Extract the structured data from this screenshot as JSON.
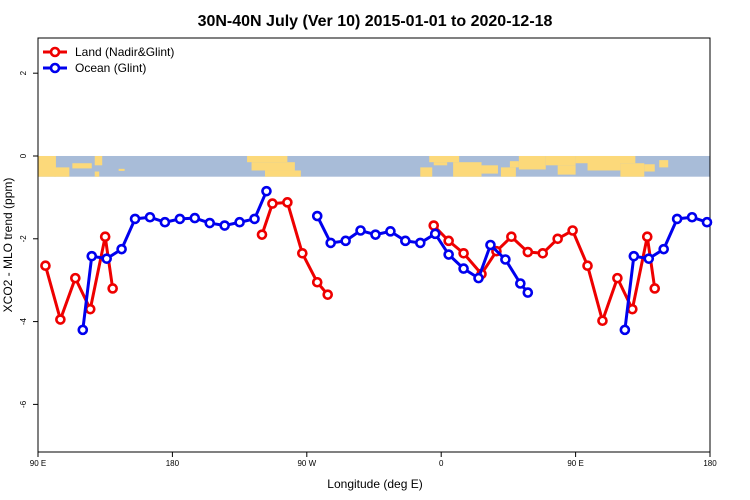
{
  "chart_data": {
    "type": "line",
    "title": "30N-40N July (Ver 10)   2015-01-01 to 2020-12-18",
    "xlabel": "Longitude (deg E)",
    "ylabel": "XCO2 - MLO trend (ppm)",
    "xlim": [
      90,
      540
    ],
    "ylim": [
      -7.15,
      2.85
    ],
    "x_ticks": [
      {
        "value": 90,
        "label": "90 E"
      },
      {
        "value": 180,
        "label": "180"
      },
      {
        "value": 270,
        "label": "90 W"
      },
      {
        "value": 360,
        "label": "0"
      },
      {
        "value": 450,
        "label": "90 E"
      },
      {
        "value": 540,
        "label": "180"
      }
    ],
    "y_ticks": [
      {
        "value": 2,
        "label": "2"
      },
      {
        "value": 0,
        "label": "0"
      },
      {
        "value": -2,
        "label": "-2"
      },
      {
        "value": -4,
        "label": "-4"
      },
      {
        "value": -6,
        "label": "-6"
      }
    ],
    "grid": false,
    "legend_position": "top-left",
    "map_band": {
      "y_top": 0,
      "y_bottom": -0.5,
      "ocean_color": "#a8bcd8",
      "land_color": "#fcd97a"
    },
    "series": [
      {
        "name": "Land (Nadir&Glint)",
        "color": "#ee0000",
        "segments": [
          [
            [
              95,
              -2.65
            ],
            [
              105,
              -3.95
            ],
            [
              115,
              -2.95
            ],
            [
              125,
              -3.7
            ],
            [
              135,
              -1.95
            ],
            [
              140,
              -3.2
            ]
          ],
          [
            [
              240,
              -1.9
            ],
            [
              247,
              -1.15
            ],
            [
              257,
              -1.12
            ],
            [
              267,
              -2.35
            ],
            [
              277,
              -3.05
            ],
            [
              284,
              -3.35
            ]
          ],
          [
            [
              355,
              -1.68
            ],
            [
              365,
              -2.05
            ],
            [
              375,
              -2.35
            ],
            [
              387,
              -2.85
            ],
            [
              397,
              -2.3
            ],
            [
              407,
              -1.95
            ],
            [
              418,
              -2.32
            ],
            [
              428,
              -2.35
            ],
            [
              438,
              -2.0
            ],
            [
              448,
              -1.8
            ],
            [
              458,
              -2.65
            ],
            [
              468,
              -3.98
            ],
            [
              478,
              -2.95
            ],
            [
              488,
              -3.7
            ],
            [
              498,
              -1.95
            ],
            [
              503,
              -3.2
            ]
          ]
        ]
      },
      {
        "name": "Ocean (Glint)",
        "color": "#0000ee",
        "segments": [
          [
            [
              120,
              -4.2
            ],
            [
              126,
              -2.42
            ],
            [
              136,
              -2.48
            ],
            [
              146,
              -2.25
            ],
            [
              155,
              -1.52
            ],
            [
              165,
              -1.48
            ],
            [
              175,
              -1.6
            ],
            [
              185,
              -1.52
            ],
            [
              195,
              -1.5
            ],
            [
              205,
              -1.62
            ],
            [
              215,
              -1.68
            ],
            [
              225,
              -1.6
            ],
            [
              235,
              -1.52
            ],
            [
              243,
              -0.85
            ]
          ],
          [
            [
              277,
              -1.45
            ],
            [
              286,
              -2.1
            ],
            [
              296,
              -2.05
            ],
            [
              306,
              -1.8
            ],
            [
              316,
              -1.9
            ],
            [
              326,
              -1.82
            ],
            [
              336,
              -2.05
            ],
            [
              346,
              -2.1
            ],
            [
              356,
              -1.88
            ],
            [
              365,
              -2.38
            ],
            [
              375,
              -2.72
            ],
            [
              385,
              -2.95
            ],
            [
              393,
              -2.15
            ],
            [
              403,
              -2.5
            ],
            [
              413,
              -3.08
            ],
            [
              418,
              -3.3
            ]
          ],
          [
            [
              483,
              -4.2
            ],
            [
              489,
              -2.42
            ],
            [
              499,
              -2.48
            ],
            [
              509,
              -2.25
            ],
            [
              518,
              -1.52
            ],
            [
              528,
              -1.48
            ],
            [
              538,
              -1.6
            ]
          ]
        ]
      }
    ]
  }
}
